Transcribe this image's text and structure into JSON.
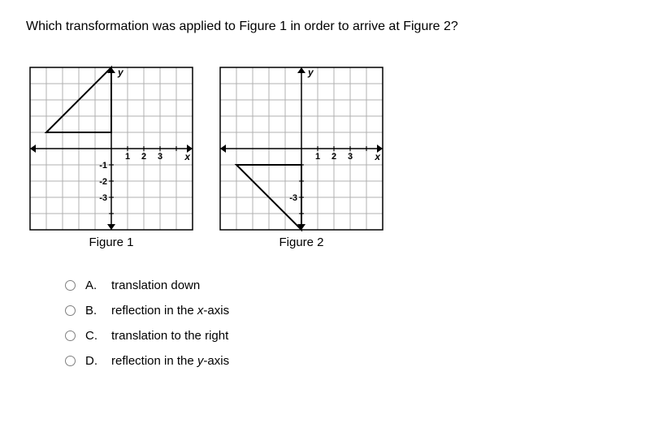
{
  "question": "Which transformation was applied to Figure 1 in order to arrive at Figure 2?",
  "figure1": {
    "label": "Figure 1",
    "grid": {
      "cell": 20,
      "cols": 10,
      "rows": 10,
      "origin_col": 5,
      "origin_row": 5,
      "line_color": "#b0b0b0",
      "border_color": "#000000",
      "background": "#ffffff"
    },
    "axis_labels": {
      "x": "x",
      "y": "y"
    },
    "tick_labels_x": [
      {
        "v": 1,
        "label": "1"
      },
      {
        "v": 2,
        "label": "2"
      },
      {
        "v": 3,
        "label": "3"
      }
    ],
    "tick_labels_y": [
      {
        "v": -1,
        "label": "-1"
      },
      {
        "v": -2,
        "label": "-2"
      },
      {
        "v": -3,
        "label": "-3"
      }
    ],
    "triangle": {
      "points": [
        [
          -4,
          1
        ],
        [
          0,
          1
        ],
        [
          0,
          5
        ]
      ],
      "stroke": "#000000",
      "fill": "none",
      "stroke_width": 2
    }
  },
  "figure2": {
    "label": "Figure 2",
    "grid": {
      "cell": 20,
      "cols": 10,
      "rows": 10,
      "origin_col": 5,
      "origin_row": 5,
      "line_color": "#b0b0b0",
      "border_color": "#000000",
      "background": "#ffffff"
    },
    "axis_labels": {
      "x": "x",
      "y": "y"
    },
    "tick_labels_x": [
      {
        "v": 1,
        "label": "1"
      },
      {
        "v": 2,
        "label": "2"
      },
      {
        "v": 3,
        "label": "3"
      }
    ],
    "tick_labels_y": [
      {
        "v": -3,
        "label": "-3"
      }
    ],
    "triangle": {
      "points": [
        [
          -4,
          -1
        ],
        [
          0,
          -1
        ],
        [
          0,
          -5
        ]
      ],
      "stroke": "#000000",
      "fill": "none",
      "stroke_width": 2
    }
  },
  "answers": {
    "A": {
      "letter": "A.",
      "text": "translation down"
    },
    "B": {
      "letter": "B.",
      "html": "reflection in the <em>x</em>-axis"
    },
    "C": {
      "letter": "C.",
      "text": "translation to the right"
    },
    "D": {
      "letter": "D.",
      "html": "reflection in the <em>y</em>-axis"
    }
  },
  "style": {
    "font_family": "Verdana, Arial, sans-serif",
    "question_fontsize": 16,
    "label_fontsize": 15,
    "tick_fontsize": 11,
    "axis_fontsize": 12
  }
}
